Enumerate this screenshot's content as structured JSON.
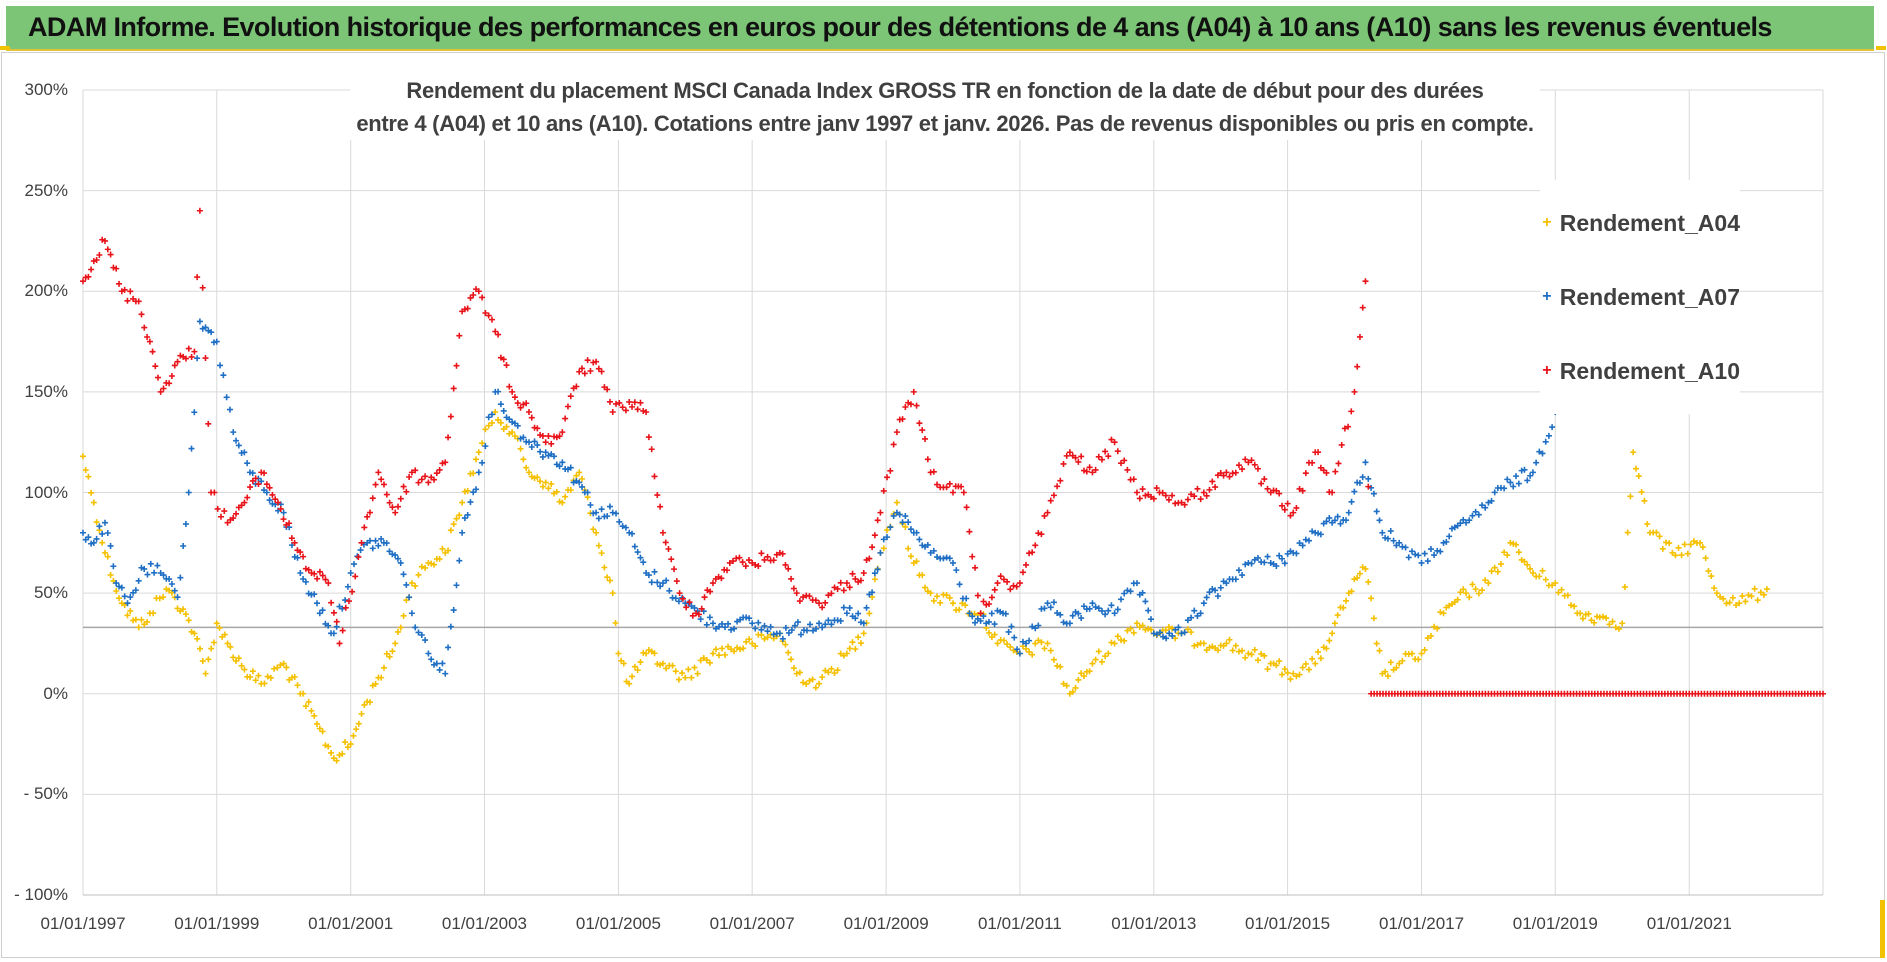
{
  "header": {
    "title": "ADAM Informe. Evolution historique des performances en euros pour des détentions de 4 ans (A04) à 10 ans (A10) sans les revenus éventuels"
  },
  "chart_data": {
    "type": "scatter",
    "title_lines": [
      "Rendement du placement MSCI Canada Index GROSS TR en fonction de la date de début pour des durées",
      "entre 4 (A04) et 10 ans (A10). Cotations entre janv 1997 et janv. 2026. Pas de revenus disponibles ou pris en compte."
    ],
    "ylim": [
      -100,
      300
    ],
    "y_ticks": [
      300,
      250,
      200,
      150,
      100,
      50,
      0,
      -50,
      -100
    ],
    "y_tick_labels": [
      "300%",
      "250%",
      "200%",
      "150%",
      "100%",
      "50%",
      "0%",
      "- 50%",
      "- 100%"
    ],
    "x_range": [
      "1997-01-01",
      "2023-01-01"
    ],
    "x_ticks": [
      "1997-01-01",
      "1999-01-01",
      "2001-01-01",
      "2003-01-01",
      "2005-01-01",
      "2007-01-01",
      "2009-01-01",
      "2011-01-01",
      "2013-01-01",
      "2015-01-01",
      "2017-01-01",
      "2019-01-01",
      "2021-01-01"
    ],
    "x_tick_labels": [
      "01/01/1997",
      "01/01/1999",
      "01/01/2001",
      "01/01/2003",
      "01/01/2005",
      "01/01/2007",
      "01/01/2009",
      "01/01/2011",
      "01/01/2013",
      "01/01/2015",
      "01/01/2017",
      "01/01/2019",
      "01/01/2021"
    ],
    "grid": "vertical and horizontal",
    "reference_line_y": 33,
    "legend_position": "right",
    "marker": "+",
    "series": [
      {
        "name": "Rendement_A04",
        "color": "#f5c000",
        "points": [
          [
            "1997-01-01",
            118
          ],
          [
            "1997-03-01",
            95
          ],
          [
            "1997-05-01",
            70
          ],
          [
            "1997-08-01",
            45
          ],
          [
            "1997-11-01",
            33
          ],
          [
            "1998-01-01",
            40
          ],
          [
            "1998-04-01",
            52
          ],
          [
            "1998-07-01",
            42
          ],
          [
            "1998-09-01",
            30
          ],
          [
            "1998-11-01",
            10
          ],
          [
            "1999-01-01",
            35
          ],
          [
            "1999-03-01",
            25
          ],
          [
            "1999-06-01",
            12
          ],
          [
            "1999-09-01",
            5
          ],
          [
            "2000-01-01",
            15
          ],
          [
            "2000-04-01",
            0
          ],
          [
            "2000-07-01",
            -15
          ],
          [
            "2000-10-01",
            -32
          ],
          [
            "2001-01-01",
            -25
          ],
          [
            "2001-03-01",
            -10
          ],
          [
            "2001-06-01",
            8
          ],
          [
            "2001-09-01",
            25
          ],
          [
            "2001-12-01",
            55
          ],
          [
            "2002-03-01",
            65
          ],
          [
            "2002-06-01",
            70
          ],
          [
            "2002-09-01",
            95
          ],
          [
            "2002-12-01",
            120
          ],
          [
            "2003-03-01",
            140
          ],
          [
            "2003-06-01",
            130
          ],
          [
            "2003-09-01",
            110
          ],
          [
            "2003-12-01",
            105
          ],
          [
            "2004-03-01",
            95
          ],
          [
            "2004-06-01",
            110
          ],
          [
            "2004-09-01",
            80
          ],
          [
            "2004-12-01",
            50
          ],
          [
            "2005-01-01",
            20
          ],
          [
            "2005-03-01",
            5
          ],
          [
            "2005-06-01",
            20
          ],
          [
            "2005-09-01",
            15
          ],
          [
            "2006-01-01",
            8
          ],
          [
            "2006-06-01",
            20
          ],
          [
            "2007-01-01",
            25
          ],
          [
            "2007-06-01",
            30
          ],
          [
            "2007-09-01",
            10
          ],
          [
            "2008-01-01",
            5
          ],
          [
            "2008-06-01",
            20
          ],
          [
            "2008-09-01",
            30
          ],
          [
            "2008-12-01",
            70
          ],
          [
            "2009-03-01",
            95
          ],
          [
            "2009-06-01",
            65
          ],
          [
            "2009-09-01",
            50
          ],
          [
            "2010-01-01",
            45
          ],
          [
            "2010-06-01",
            40
          ],
          [
            "2010-09-01",
            25
          ],
          [
            "2011-01-01",
            20
          ],
          [
            "2011-06-01",
            25
          ],
          [
            "2011-10-01",
            0
          ],
          [
            "2012-02-01",
            15
          ],
          [
            "2012-06-01",
            25
          ],
          [
            "2012-10-01",
            35
          ],
          [
            "2013-02-01",
            30
          ],
          [
            "2013-06-01",
            30
          ],
          [
            "2013-10-01",
            25
          ],
          [
            "2014-02-01",
            25
          ],
          [
            "2014-06-01",
            20
          ],
          [
            "2014-10-01",
            15
          ],
          [
            "2015-02-01",
            10
          ],
          [
            "2015-06-01",
            15
          ],
          [
            "2015-09-01",
            30
          ],
          [
            "2015-12-01",
            50
          ],
          [
            "2016-03-01",
            62
          ],
          [
            "2016-06-01",
            10
          ],
          [
            "2016-09-01",
            15
          ],
          [
            "2017-01-01",
            20
          ],
          [
            "2017-05-01",
            40
          ],
          [
            "2017-09-01",
            50
          ],
          [
            "2018-01-01",
            55
          ],
          [
            "2018-05-01",
            75
          ],
          [
            "2018-09-01",
            60
          ],
          [
            "2019-01-01",
            55
          ],
          [
            "2019-05-01",
            40
          ],
          [
            "2019-09-01",
            38
          ],
          [
            "2020-01-01",
            35
          ],
          [
            "2020-03-01",
            120
          ],
          [
            "2020-06-01",
            80
          ],
          [
            "2020-10-01",
            70
          ],
          [
            "2021-03-01",
            75
          ],
          [
            "2021-06-01",
            50
          ],
          [
            "2021-10-01",
            45
          ],
          [
            "2022-03-01",
            52
          ]
        ]
      },
      {
        "name": "Rendement_A07",
        "color": "#1f6fc4",
        "points": [
          [
            "1997-01-01",
            80
          ],
          [
            "1997-03-01",
            75
          ],
          [
            "1997-05-01",
            85
          ],
          [
            "1997-07-01",
            55
          ],
          [
            "1997-09-01",
            45
          ],
          [
            "1997-12-01",
            62
          ],
          [
            "1998-03-01",
            60
          ],
          [
            "1998-06-01",
            48
          ],
          [
            "1998-08-01",
            100
          ],
          [
            "1998-10-01",
            185
          ],
          [
            "1999-01-01",
            175
          ],
          [
            "1999-04-01",
            130
          ],
          [
            "1999-07-01",
            110
          ],
          [
            "1999-10-01",
            100
          ],
          [
            "2000-01-01",
            90
          ],
          [
            "2000-04-01",
            60
          ],
          [
            "2000-07-01",
            45
          ],
          [
            "2000-10-01",
            30
          ],
          [
            "2001-01-01",
            60
          ],
          [
            "2001-04-01",
            75
          ],
          [
            "2001-07-01",
            75
          ],
          [
            "2001-10-01",
            65
          ],
          [
            "2001-12-01",
            40
          ],
          [
            "2002-03-01",
            20
          ],
          [
            "2002-06-01",
            10
          ],
          [
            "2002-09-01",
            80
          ],
          [
            "2002-12-01",
            110
          ],
          [
            "2003-03-01",
            150
          ],
          [
            "2003-06-01",
            135
          ],
          [
            "2003-09-01",
            125
          ],
          [
            "2003-12-01",
            120
          ],
          [
            "2004-03-01",
            115
          ],
          [
            "2004-06-01",
            105
          ],
          [
            "2004-09-01",
            90
          ],
          [
            "2004-12-01",
            90
          ],
          [
            "2005-03-01",
            80
          ],
          [
            "2005-06-01",
            60
          ],
          [
            "2005-09-01",
            55
          ],
          [
            "2006-01-01",
            45
          ],
          [
            "2006-06-01",
            35
          ],
          [
            "2007-01-01",
            35
          ],
          [
            "2007-06-01",
            30
          ],
          [
            "2008-01-01",
            35
          ],
          [
            "2008-06-01",
            40
          ],
          [
            "2008-09-01",
            35
          ],
          [
            "2008-12-01",
            70
          ],
          [
            "2009-03-01",
            90
          ],
          [
            "2009-06-01",
            80
          ],
          [
            "2009-09-01",
            70
          ],
          [
            "2010-01-01",
            65
          ],
          [
            "2010-04-01",
            40
          ],
          [
            "2010-07-01",
            35
          ],
          [
            "2010-10-01",
            40
          ],
          [
            "2011-01-01",
            20
          ],
          [
            "2011-06-01",
            45
          ],
          [
            "2011-10-01",
            35
          ],
          [
            "2012-02-01",
            45
          ],
          [
            "2012-06-01",
            40
          ],
          [
            "2012-10-01",
            55
          ],
          [
            "2013-01-01",
            30
          ],
          [
            "2013-06-01",
            30
          ],
          [
            "2013-10-01",
            45
          ],
          [
            "2014-02-01",
            55
          ],
          [
            "2014-06-01",
            65
          ],
          [
            "2014-10-01",
            65
          ],
          [
            "2015-02-01",
            70
          ],
          [
            "2015-06-01",
            80
          ],
          [
            "2015-09-01",
            85
          ],
          [
            "2015-12-01",
            90
          ],
          [
            "2016-03-01",
            115
          ],
          [
            "2016-06-01",
            80
          ],
          [
            "2016-09-01",
            75
          ],
          [
            "2017-01-01",
            65
          ],
          [
            "2017-05-01",
            75
          ],
          [
            "2017-09-01",
            85
          ],
          [
            "2018-01-01",
            95
          ],
          [
            "2018-05-01",
            105
          ],
          [
            "2018-09-01",
            110
          ],
          [
            "2019-01-01",
            140
          ]
        ]
      },
      {
        "name": "Rendement_A10",
        "color": "#e8141a",
        "points": [
          [
            "1997-01-01",
            205
          ],
          [
            "1997-03-01",
            215
          ],
          [
            "1997-05-01",
            225
          ],
          [
            "1997-08-01",
            200
          ],
          [
            "1997-11-01",
            195
          ],
          [
            "1998-01-01",
            175
          ],
          [
            "1998-03-01",
            150
          ],
          [
            "1998-06-01",
            165
          ],
          [
            "1998-09-01",
            170
          ],
          [
            "1998-10-01",
            240
          ],
          [
            "1998-12-01",
            100
          ],
          [
            "1999-03-01",
            85
          ],
          [
            "1999-06-01",
            95
          ],
          [
            "1999-09-01",
            110
          ],
          [
            "1999-12-01",
            95
          ],
          [
            "2000-03-01",
            75
          ],
          [
            "2000-06-01",
            60
          ],
          [
            "2000-09-01",
            55
          ],
          [
            "2000-11-01",
            25
          ],
          [
            "2001-03-01",
            75
          ],
          [
            "2001-06-01",
            110
          ],
          [
            "2001-09-01",
            90
          ],
          [
            "2001-12-01",
            110
          ],
          [
            "2002-03-01",
            105
          ],
          [
            "2002-06-01",
            115
          ],
          [
            "2002-09-01",
            190
          ],
          [
            "2002-12-01",
            200
          ],
          [
            "2003-03-01",
            180
          ],
          [
            "2003-06-01",
            150
          ],
          [
            "2003-09-01",
            140
          ],
          [
            "2003-12-01",
            125
          ],
          [
            "2004-03-01",
            130
          ],
          [
            "2004-06-01",
            160
          ],
          [
            "2004-09-01",
            165
          ],
          [
            "2004-12-01",
            140
          ],
          [
            "2005-03-01",
            145
          ],
          [
            "2005-06-01",
            140
          ],
          [
            "2005-09-01",
            80
          ],
          [
            "2005-12-01",
            50
          ],
          [
            "2006-03-01",
            40
          ],
          [
            "2006-06-01",
            55
          ],
          [
            "2006-09-01",
            65
          ],
          [
            "2007-01-01",
            65
          ],
          [
            "2007-06-01",
            70
          ],
          [
            "2007-09-01",
            50
          ],
          [
            "2008-01-01",
            45
          ],
          [
            "2008-06-01",
            55
          ],
          [
            "2008-09-01",
            60
          ],
          [
            "2008-12-01",
            90
          ],
          [
            "2009-03-01",
            130
          ],
          [
            "2009-06-01",
            150
          ],
          [
            "2009-09-01",
            110
          ],
          [
            "2010-01-01",
            100
          ],
          [
            "2010-03-01",
            100
          ],
          [
            "2010-06-01",
            40
          ],
          [
            "2010-09-01",
            55
          ],
          [
            "2011-01-01",
            55
          ],
          [
            "2011-06-01",
            90
          ],
          [
            "2011-10-01",
            120
          ],
          [
            "2012-02-01",
            110
          ],
          [
            "2012-06-01",
            125
          ],
          [
            "2012-10-01",
            100
          ],
          [
            "2013-02-01",
            100
          ],
          [
            "2013-06-01",
            95
          ],
          [
            "2013-10-01",
            100
          ],
          [
            "2014-02-01",
            110
          ],
          [
            "2014-06-01",
            115
          ],
          [
            "2014-10-01",
            100
          ],
          [
            "2015-02-01",
            90
          ],
          [
            "2015-06-01",
            120
          ],
          [
            "2015-09-01",
            100
          ],
          [
            "2016-01-01",
            150
          ],
          [
            "2016-03-01",
            205
          ],
          [
            "2016-04-01",
            0
          ],
          [
            "2017-01-01",
            0
          ],
          [
            "2018-01-01",
            0
          ],
          [
            "2019-01-01",
            0
          ],
          [
            "2020-01-01",
            0
          ],
          [
            "2021-01-01",
            0
          ],
          [
            "2022-01-01",
            0
          ],
          [
            "2023-01-01",
            0
          ]
        ]
      }
    ]
  }
}
